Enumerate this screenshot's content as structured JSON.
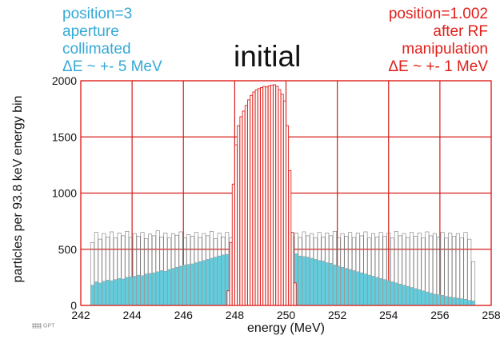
{
  "chart_data": {
    "type": "bar",
    "title": "initial",
    "xlabel": "energy (MeV)",
    "ylabel": "particles per 93.8 keV energy bin",
    "xlim": [
      242,
      258
    ],
    "ylim": [
      0,
      2000
    ],
    "xticks": [
      242,
      244,
      246,
      248,
      250,
      252,
      254,
      256,
      258
    ],
    "yticks": [
      0,
      500,
      1000,
      1500,
      2000
    ],
    "grid": true,
    "bin_width_MeV": 0.0938,
    "annotations": {
      "left": [
        "position=3",
        "aperture",
        "collimated",
        "ΔE ~ +- 5 MeV"
      ],
      "right": [
        "position=1.002",
        "after RF",
        "manipulation",
        "ΔE ~ +- 1 MeV"
      ]
    },
    "series": [
      {
        "name": "position=1.002 after RF manipulation",
        "color": "#e0201b",
        "fill": "#ffffff",
        "x": [
          247.75,
          247.85,
          247.95,
          248.05,
          248.15,
          248.25,
          248.35,
          248.45,
          248.55,
          248.65,
          248.75,
          248.85,
          248.95,
          249.05,
          249.15,
          249.25,
          249.35,
          249.45,
          249.55,
          249.65,
          249.75,
          249.85,
          249.95,
          250.05,
          250.15,
          250.25,
          250.35
        ],
        "values": [
          130,
          560,
          1080,
          1430,
          1600,
          1680,
          1730,
          1780,
          1830,
          1870,
          1900,
          1920,
          1930,
          1940,
          1950,
          1945,
          1955,
          1960,
          1965,
          1950,
          1920,
          1880,
          1820,
          1600,
          1200,
          650,
          200
        ]
      },
      {
        "name": "position=3 aperture collimated",
        "color": "#9a9a9a",
        "fill": "#5fcfe0",
        "x": [
          242.45,
          242.6,
          242.75,
          242.9,
          243.05,
          243.2,
          243.35,
          243.5,
          243.65,
          243.8,
          243.95,
          244.1,
          244.25,
          244.4,
          244.55,
          244.7,
          244.85,
          245.0,
          245.15,
          245.3,
          245.45,
          245.6,
          245.75,
          245.9,
          246.05,
          246.2,
          246.35,
          246.5,
          246.65,
          246.8,
          246.95,
          247.1,
          247.25,
          247.4,
          247.55,
          247.7,
          247.85,
          248.0,
          248.15,
          248.3,
          248.45,
          248.6,
          248.75,
          248.9,
          249.05,
          249.2,
          249.35,
          249.5,
          249.65,
          249.8,
          249.95,
          250.1,
          250.25,
          250.4,
          250.55,
          250.7,
          250.85,
          251.0,
          251.15,
          251.3,
          251.45,
          251.6,
          251.75,
          251.9,
          252.05,
          252.2,
          252.35,
          252.5,
          252.65,
          252.8,
          252.95,
          253.1,
          253.25,
          253.4,
          253.55,
          253.7,
          253.85,
          254.0,
          254.15,
          254.3,
          254.45,
          254.6,
          254.75,
          254.9,
          255.05,
          255.2,
          255.35,
          255.5,
          255.65,
          255.8,
          255.95,
          256.1,
          256.25,
          256.4,
          256.55,
          256.7,
          256.85,
          257.0,
          257.15,
          257.3
        ],
        "values": [
          180,
          210,
          200,
          215,
          225,
          220,
          230,
          240,
          235,
          250,
          255,
          260,
          270,
          265,
          280,
          285,
          290,
          300,
          310,
          305,
          320,
          330,
          340,
          350,
          360,
          365,
          370,
          380,
          390,
          400,
          410,
          420,
          430,
          440,
          450,
          455,
          460,
          470,
          460,
          470,
          480,
          485,
          470,
          465,
          460,
          470,
          450,
          455,
          440,
          445,
          450,
          460,
          455,
          460,
          440,
          435,
          430,
          420,
          410,
          400,
          395,
          380,
          375,
          360,
          350,
          340,
          330,
          320,
          310,
          300,
          290,
          280,
          270,
          260,
          250,
          240,
          230,
          220,
          210,
          200,
          190,
          180,
          170,
          160,
          150,
          140,
          130,
          120,
          110,
          100,
          95,
          90,
          80,
          75,
          70,
          65,
          60,
          55,
          45,
          40
        ]
      },
      {
        "name": "initial",
        "color": "#7a7a7a",
        "fill": "none",
        "x": [
          242.45,
          242.6,
          242.75,
          242.9,
          243.05,
          243.2,
          243.35,
          243.5,
          243.65,
          243.8,
          243.95,
          244.1,
          244.25,
          244.4,
          244.55,
          244.7,
          244.85,
          245.0,
          245.15,
          245.3,
          245.45,
          245.6,
          245.75,
          245.9,
          246.05,
          246.2,
          246.35,
          246.5,
          246.65,
          246.8,
          246.95,
          247.1,
          247.25,
          247.4,
          247.55,
          247.7,
          247.85,
          248.0,
          248.15,
          248.3,
          248.45,
          248.6,
          248.75,
          248.9,
          249.05,
          249.2,
          249.35,
          249.5,
          249.65,
          249.8,
          249.95,
          250.1,
          250.25,
          250.4,
          250.55,
          250.7,
          250.85,
          251.0,
          251.15,
          251.3,
          251.45,
          251.6,
          251.75,
          251.9,
          252.05,
          252.2,
          252.35,
          252.5,
          252.65,
          252.8,
          252.95,
          253.1,
          253.25,
          253.4,
          253.55,
          253.7,
          253.85,
          254.0,
          254.15,
          254.3,
          254.45,
          254.6,
          254.75,
          254.9,
          255.05,
          255.2,
          255.35,
          255.5,
          255.65,
          255.8,
          255.95,
          256.1,
          256.25,
          256.4,
          256.55,
          256.7,
          256.85,
          257.0,
          257.15,
          257.3
        ],
        "values": [
          560,
          650,
          590,
          640,
          610,
          655,
          600,
          645,
          620,
          660,
          605,
          640,
          615,
          650,
          595,
          635,
          620,
          665,
          610,
          645,
          600,
          640,
          625,
          655,
          600,
          630,
          615,
          650,
          605,
          640,
          620,
          660,
          595,
          645,
          610,
          650,
          600,
          640,
          620,
          655,
          605,
          640,
          615,
          650,
          600,
          645,
          620,
          660,
          610,
          640,
          600,
          650,
          615,
          645,
          605,
          655,
          620,
          640,
          600,
          650,
          610,
          645,
          620,
          660,
          600,
          640,
          615,
          650,
          605,
          645,
          620,
          655,
          600,
          640,
          610,
          650,
          615,
          645,
          600,
          660,
          620,
          640,
          605,
          650,
          615,
          645,
          600,
          655,
          620,
          640,
          610,
          650,
          600,
          645,
          615,
          640,
          600,
          650,
          590,
          390
        ]
      }
    ]
  },
  "ui": {
    "logo_text": "GPT"
  }
}
